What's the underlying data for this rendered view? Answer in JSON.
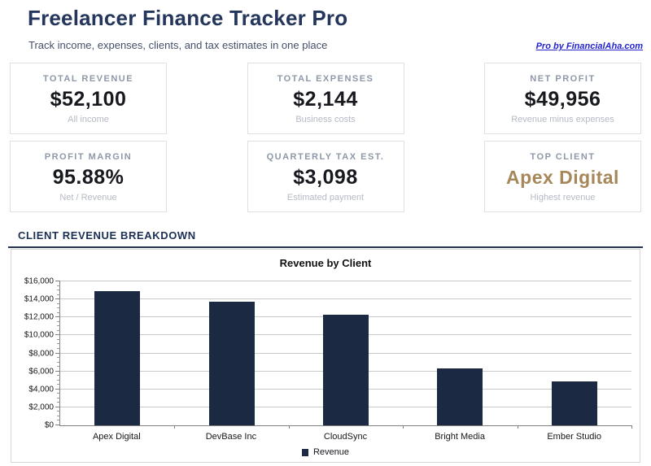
{
  "header": {
    "title": "Freelancer Finance Tracker Pro",
    "subtitle": "Track income, expenses, clients, and tax estimates in one place",
    "link_label": "Pro by FinancialAha.com"
  },
  "stats": {
    "cards": [
      {
        "label": "TOTAL REVENUE",
        "value": "$52,100",
        "note": "All income"
      },
      {
        "label": "TOTAL EXPENSES",
        "value": "$2,144",
        "note": "Business costs"
      },
      {
        "label": "NET PROFIT",
        "value": "$49,956",
        "note": "Revenue minus expenses"
      },
      {
        "label": "PROFIT MARGIN",
        "value": "95.88%",
        "note": "Net / Revenue"
      },
      {
        "label": "QUARTERLY TAX EST.",
        "value": "$3,098",
        "note": "Estimated payment"
      },
      {
        "label": "TOP CLIENT",
        "value": "Apex Digital",
        "note": "Highest revenue"
      }
    ]
  },
  "breakdown": {
    "title": "CLIENT REVENUE BREAKDOWN"
  },
  "chart_data": {
    "type": "bar",
    "title": "Revenue by Client",
    "categories": [
      "Apex Digital",
      "DevBase Inc",
      "CloudSync",
      "Bright Media",
      "Ember Studio"
    ],
    "series": [
      {
        "name": "Revenue",
        "values": [
          14900,
          13700,
          12300,
          6300,
          4900
        ]
      }
    ],
    "xlabel": "",
    "ylabel": "",
    "ylim": [
      0,
      16000
    ],
    "ytick_step": 2000,
    "ytick_minor_step": 500,
    "ytick_prefix": "$",
    "grid": true,
    "legend": [
      "Revenue"
    ],
    "legend_position": "bottom",
    "bar_color": "#1b2942"
  },
  "colors": {
    "title_navy": "#24365c",
    "link_blue": "#2323cd",
    "top_client_gold": "#a6875a",
    "bar_navy": "#1b2942"
  }
}
